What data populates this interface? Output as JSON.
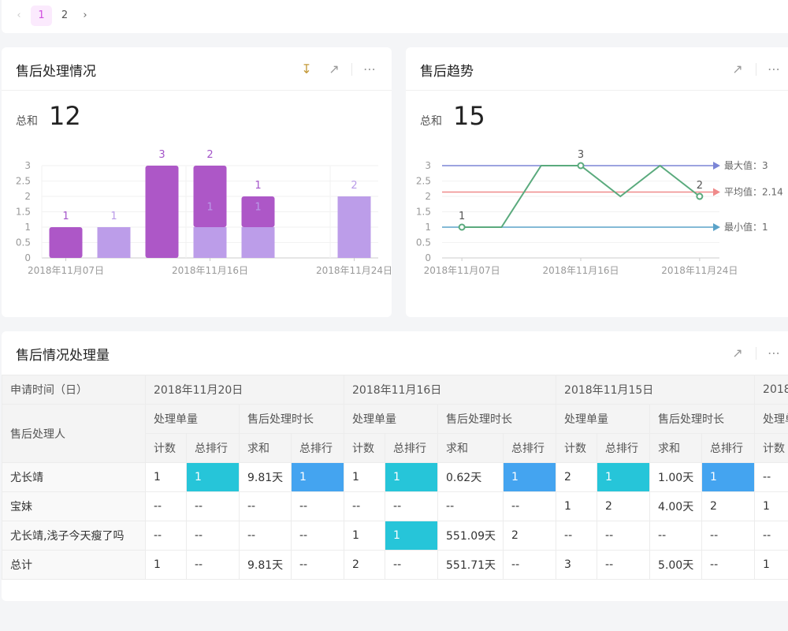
{
  "pagination": {
    "pages": [
      "1",
      "2"
    ],
    "current": "1",
    "prev_icon": "chevron-left-icon",
    "next_icon": "chevron-right-icon"
  },
  "colors": {
    "bar_dark": "#ad57c7",
    "bar_light": "#bc9de9",
    "line": "#5aaa7d",
    "max_line": "#7b85d6",
    "avg_line": "#ef8a8a",
    "min_line": "#5ba3c9",
    "cyan": "#26c5d9",
    "blue": "#44a4f0",
    "page_active_bg": "#fbeafd",
    "page_active_fg": "#d04ee0"
  },
  "card1": {
    "title": "售后处理情况",
    "sum_label": "总和",
    "sum_value": "12",
    "icons": [
      "download-icon",
      "expand-icon",
      "more-icon"
    ]
  },
  "card2": {
    "title": "售后趋势",
    "sum_label": "总和",
    "sum_value": "15",
    "icons": [
      "expand-icon",
      "more-icon"
    ]
  },
  "chart_data": [
    {
      "type": "bar",
      "stacked": true,
      "categories": [
        "2018年11月07日",
        "",
        "",
        "2018年11月16日",
        "",
        "",
        "2018年11月24日"
      ],
      "series": [
        {
          "values": [
            1,
            0,
            3,
            2,
            1,
            0,
            0
          ],
          "color": "#ad57c7"
        },
        {
          "values": [
            0,
            1,
            0,
            1,
            1,
            0,
            2
          ],
          "color": "#bc9de9"
        }
      ],
      "data_labels": [
        {
          "index": 0,
          "text": "1",
          "light": false
        },
        {
          "index": 1,
          "text": "1",
          "light": true
        },
        {
          "index": 2,
          "text": "3",
          "light": false
        },
        {
          "index": 3,
          "text": "2",
          "light": false
        },
        {
          "index": 3,
          "text": "1",
          "light": true,
          "at": 1
        },
        {
          "index": 4,
          "text": "1",
          "light": false
        },
        {
          "index": 4,
          "text": "1",
          "light": true,
          "at": 1
        },
        {
          "index": 6,
          "text": "2",
          "light": true
        }
      ],
      "yticks": [
        "0",
        "0.5",
        "1",
        "1.5",
        "2",
        "2.5",
        "3"
      ],
      "ylim": [
        0,
        3
      ],
      "grid": true
    },
    {
      "type": "line",
      "categories": [
        "2018年11月07日",
        "",
        "",
        "2018年11月16日",
        "",
        "",
        "2018年11月24日"
      ],
      "values": [
        1,
        1,
        3,
        3,
        2,
        3,
        2
      ],
      "point_labels": [
        {
          "index": 0,
          "text": "1"
        },
        {
          "index": 3,
          "text": "3"
        },
        {
          "index": 6,
          "text": "2"
        }
      ],
      "yticks": [
        "0",
        "0.5",
        "1",
        "1.5",
        "2",
        "2.5",
        "3"
      ],
      "ylim": [
        0,
        3
      ],
      "grid": true,
      "marklines": [
        {
          "label": "最大值：3",
          "value": 3,
          "color": "#7b85d6"
        },
        {
          "label": "平均值：2.14",
          "value": 2.14,
          "color": "#ef8a8a"
        },
        {
          "label": "最小值：1",
          "value": 1,
          "color": "#5ba3c9"
        }
      ]
    }
  ],
  "card3": {
    "title": "售后情况处理量",
    "icons": [
      "expand-icon",
      "more-icon"
    ],
    "row_header": "申请时间（日）",
    "col_header": "售后处理人",
    "dates": [
      "2018年11月20日",
      "2018年11月16日",
      "2018年11月15日",
      "2018"
    ],
    "measures": [
      "处理单量",
      "售后处理时长"
    ],
    "sub": [
      "计数",
      "总排行",
      "求和",
      "总排行"
    ],
    "rows": [
      {
        "name": "尤长靖",
        "cells": [
          "1",
          "1",
          "9.81天",
          "1",
          "1",
          "1",
          "0.62天",
          "1",
          "2",
          "1",
          "1.00天",
          "1",
          "--"
        ],
        "hl": [
          "",
          "cyan",
          "",
          "blue",
          "",
          "cyan",
          "",
          "blue",
          "",
          "cyan",
          "",
          "blue",
          ""
        ]
      },
      {
        "name": "宝妹",
        "cells": [
          "--",
          "--",
          "--",
          "--",
          "--",
          "--",
          "--",
          "--",
          "1",
          "2",
          "4.00天",
          "2",
          "1"
        ],
        "hl": [
          "",
          "",
          "",
          "",
          "",
          "",
          "",
          "",
          "",
          "",
          "",
          "",
          ""
        ]
      },
      {
        "name": "尤长靖,浅子今天瘦了吗",
        "cells": [
          "--",
          "--",
          "--",
          "--",
          "1",
          "1",
          "551.09天",
          "2",
          "--",
          "--",
          "--",
          "--",
          "--"
        ],
        "hl": [
          "",
          "",
          "",
          "",
          "",
          "cyan",
          "",
          "",
          "",
          "",
          "",
          "",
          ""
        ]
      },
      {
        "name": "总计",
        "cells": [
          "1",
          "--",
          "9.81天",
          "--",
          "2",
          "--",
          "551.71天",
          "--",
          "3",
          "--",
          "5.00天",
          "--",
          "1"
        ],
        "hl": [
          "",
          "",
          "",
          "",
          "",
          "",
          "",
          "",
          "",
          "",
          "",
          "",
          ""
        ]
      }
    ]
  }
}
